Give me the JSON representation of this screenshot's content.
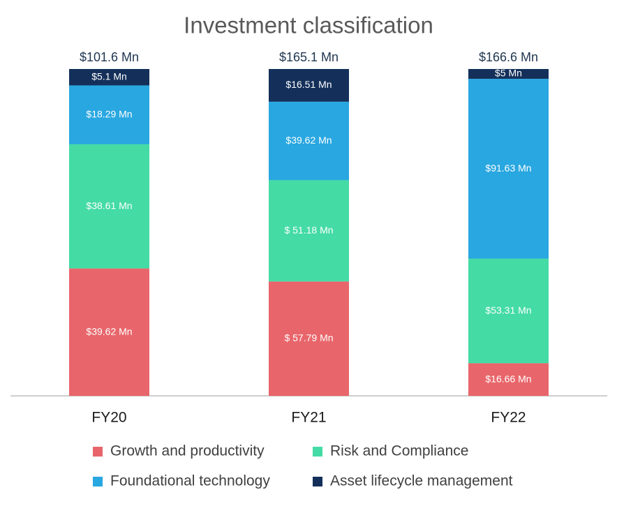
{
  "chart_data": {
    "type": "bar",
    "stacked": "percent",
    "title": "Investment classification",
    "categories": [
      "FY20",
      "FY21",
      "FY22"
    ],
    "series": [
      {
        "name": "Growth and productivity",
        "color": "#e8666b",
        "values": [
          39.62,
          57.79,
          16.66
        ],
        "value_labels": [
          "$39.62 Mn",
          "$ 57.79 Mn",
          "$16.66 Mn"
        ]
      },
      {
        "name": "Risk and Compliance",
        "color": "#44dba5",
        "values": [
          38.61,
          51.18,
          53.31
        ],
        "value_labels": [
          "$38.61 Mn",
          "$ 51.18 Mn",
          "$53.31 Mn"
        ]
      },
      {
        "name": "Foundational technology",
        "color": "#29a7e1",
        "values": [
          18.29,
          39.62,
          91.63
        ],
        "value_labels": [
          "$18.29 Mn",
          "$39.62 Mn",
          "$91.63 Mn"
        ]
      },
      {
        "name": "Asset lifecycle management",
        "color": "#14305a",
        "values": [
          5.1,
          16.51,
          5
        ],
        "value_labels": [
          "$5.1 Mn",
          "$16.51 Mn",
          "$5 Mn"
        ]
      }
    ],
    "totals": [
      101.6,
      165.1,
      166.6
    ],
    "total_labels": [
      "$101.6 Mn",
      "$165.1 Mn",
      "$166.6 Mn"
    ],
    "legend": "bottom"
  }
}
